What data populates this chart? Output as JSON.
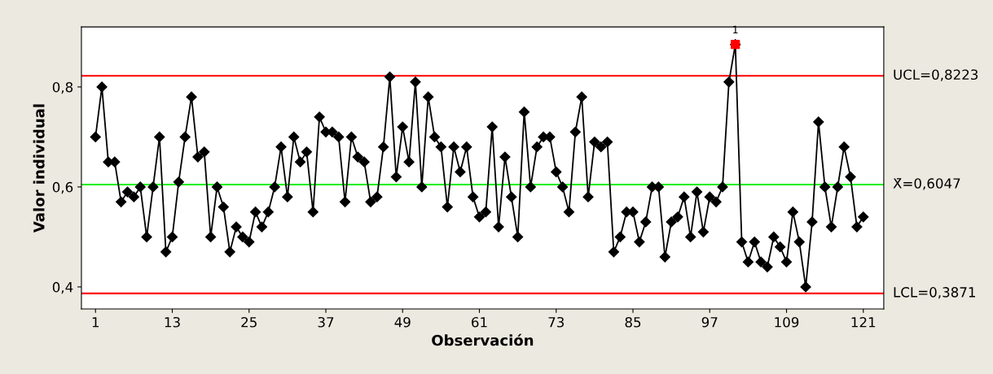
{
  "chart_data": {
    "type": "line",
    "xlabel": "Observación",
    "ylabel": "Valor individual",
    "xlim": [
      -1.2,
      124.2
    ],
    "ylim": [
      0.356,
      0.92
    ],
    "xticks": [
      1,
      13,
      25,
      37,
      49,
      61,
      73,
      85,
      97,
      109,
      121
    ],
    "yticks": [
      {
        "value": 0.4,
        "label": "0,4"
      },
      {
        "value": 0.6,
        "label": "0,6"
      },
      {
        "value": 0.8,
        "label": "0,8"
      }
    ],
    "grid": false,
    "marker": "diamond",
    "line_style": "solid",
    "series": [
      {
        "color": "#000000",
        "x": [
          1,
          2,
          3,
          4,
          5,
          6,
          7,
          8,
          9,
          10,
          11,
          12,
          13,
          14,
          15,
          16,
          17,
          18,
          19,
          20,
          21,
          22,
          23,
          24,
          25,
          26,
          27,
          28,
          29,
          30,
          31,
          32,
          33,
          34,
          35,
          36,
          37,
          38,
          39,
          40,
          41,
          42,
          43,
          44,
          45,
          46,
          47,
          48,
          49,
          50,
          51,
          52,
          53,
          54,
          55,
          56,
          57,
          58,
          59,
          60,
          61,
          62,
          63,
          64,
          65,
          66,
          67,
          68,
          69,
          70,
          71,
          72,
          73,
          74,
          75,
          76,
          77,
          78,
          79,
          80,
          81,
          82,
          83,
          84,
          85,
          86,
          87,
          88,
          89,
          90,
          91,
          92,
          93,
          94,
          95,
          96,
          97,
          98,
          99,
          100,
          101,
          102,
          103,
          104,
          105,
          106,
          107,
          108,
          109,
          110,
          111,
          112,
          113,
          114,
          115,
          116,
          117,
          118,
          119,
          120,
          121
        ],
        "values": [
          0.7,
          0.8,
          0.65,
          0.65,
          0.57,
          0.59,
          0.58,
          0.6,
          0.5,
          0.6,
          0.7,
          0.47,
          0.5,
          0.61,
          0.7,
          0.78,
          0.66,
          0.67,
          0.5,
          0.6,
          0.56,
          0.47,
          0.52,
          0.5,
          0.49,
          0.55,
          0.52,
          0.55,
          0.6,
          0.68,
          0.58,
          0.7,
          0.65,
          0.67,
          0.55,
          0.74,
          0.71,
          0.71,
          0.7,
          0.57,
          0.7,
          0.66,
          0.65,
          0.57,
          0.58,
          0.68,
          0.82,
          0.62,
          0.72,
          0.65,
          0.81,
          0.6,
          0.78,
          0.7,
          0.68,
          0.56,
          0.68,
          0.63,
          0.68,
          0.58,
          0.54,
          0.55,
          0.72,
          0.52,
          0.66,
          0.58,
          0.5,
          0.75,
          0.6,
          0.68,
          0.7,
          0.7,
          0.63,
          0.6,
          0.55,
          0.71,
          0.78,
          0.58,
          0.69,
          0.68,
          0.69,
          0.47,
          0.5,
          0.55,
          0.55,
          0.49,
          0.53,
          0.6,
          0.6,
          0.46,
          0.53,
          0.54,
          0.58,
          0.5,
          0.59,
          0.51,
          0.58,
          0.57,
          0.6,
          0.81,
          0.885,
          0.49,
          0.45,
          0.49,
          0.45,
          0.44,
          0.5,
          0.48,
          0.45,
          0.55,
          0.49,
          0.4,
          0.53,
          0.73,
          0.6,
          0.52,
          0.6,
          0.68,
          0.62,
          0.52,
          0.54
        ]
      },
      {
        "type": "scatter",
        "color": "#ff0000",
        "marker": "square",
        "x": [
          101
        ],
        "values": [
          0.885
        ]
      }
    ],
    "ref_lines": [
      {
        "axis": "y",
        "value": 0.8223,
        "label": "UCL=0,8223",
        "color": "#ff0000",
        "line_style": "solid"
      },
      {
        "axis": "y",
        "value": 0.6047,
        "label": "X̄=0,6047",
        "color": "#00ee00",
        "line_style": "solid"
      },
      {
        "axis": "y",
        "value": 0.3871,
        "label": "LCL=0,3871",
        "color": "#ff0000",
        "line_style": "solid"
      }
    ],
    "annotations": [
      {
        "text": "1",
        "x": 101,
        "y": 0.885
      }
    ]
  }
}
